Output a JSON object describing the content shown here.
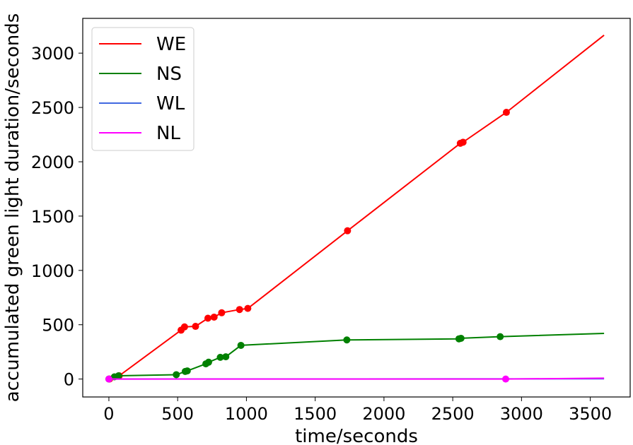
{
  "chart_data": {
    "type": "line",
    "title": "",
    "xlabel": "time/seconds",
    "ylabel": "accumulated green light duration/seconds",
    "xlim": [
      -190,
      3790
    ],
    "ylim": [
      -165,
      3320
    ],
    "xticks": [
      0,
      500,
      1000,
      1500,
      2000,
      2500,
      3000,
      3500
    ],
    "xtick_labels": [
      "0",
      "500",
      "1000",
      "1500",
      "2000",
      "2500",
      "3000",
      "3500"
    ],
    "yticks": [
      0,
      500,
      1000,
      1500,
      2000,
      2500,
      3000
    ],
    "ytick_labels": [
      "0",
      "500",
      "1000",
      "1500",
      "2000",
      "2500",
      "3000"
    ],
    "grid": false,
    "legend_position": "top-left",
    "series": [
      {
        "name": "WE",
        "color": "#ff0000",
        "x": [
          0,
          5,
          75,
          525,
          550,
          630,
          720,
          765,
          820,
          950,
          1010,
          1735,
          2555,
          2575,
          2890,
          3600
        ],
        "y": [
          0,
          0,
          30,
          450,
          480,
          485,
          560,
          570,
          610,
          640,
          650,
          1365,
          2170,
          2180,
          2455,
          3165
        ],
        "markers_x": [
          5,
          75,
          525,
          550,
          630,
          720,
          765,
          820,
          950,
          1010,
          1735,
          2555,
          2575,
          2890
        ],
        "markers_y": [
          0,
          30,
          450,
          480,
          485,
          560,
          570,
          610,
          640,
          650,
          1365,
          2170,
          2180,
          2455
        ]
      },
      {
        "name": "NS",
        "color": "#008000",
        "x": [
          0,
          40,
          70,
          490,
          555,
          570,
          705,
          725,
          810,
          850,
          960,
          1730,
          2545,
          2560,
          2845,
          3600
        ],
        "y": [
          0,
          20,
          30,
          40,
          70,
          75,
          140,
          155,
          200,
          205,
          310,
          360,
          370,
          375,
          390,
          420
        ],
        "markers_x": [
          0,
          40,
          70,
          490,
          555,
          570,
          705,
          725,
          810,
          850,
          960,
          1730,
          2545,
          2560,
          2845
        ],
        "markers_y": [
          0,
          20,
          30,
          40,
          70,
          75,
          140,
          155,
          200,
          205,
          310,
          360,
          370,
          375,
          390
        ]
      },
      {
        "name": "WL",
        "color": "#4169e1",
        "x": [
          0,
          3600
        ],
        "y": [
          0,
          2
        ],
        "markers_x": [],
        "markers_y": []
      },
      {
        "name": "NL",
        "color": "#ff00ff",
        "x": [
          0,
          2885,
          3600
        ],
        "y": [
          0,
          0,
          8
        ],
        "markers_x": [
          0,
          2885
        ],
        "markers_y": [
          0,
          0
        ]
      }
    ]
  }
}
